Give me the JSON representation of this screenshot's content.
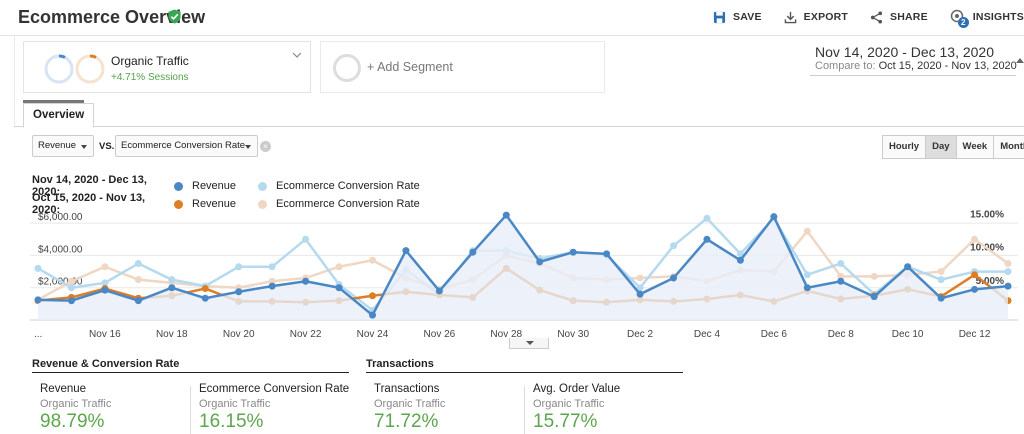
{
  "header": {
    "title": "Ecommerce Overview",
    "actions": {
      "save": "SAVE",
      "export": "EXPORT",
      "share": "SHARE",
      "insights": "INSIGHTS",
      "insights_badge": "2"
    }
  },
  "segments": {
    "active": {
      "name": "Organic Traffic",
      "sub": "+4.71% Sessions"
    },
    "add_label": "+ Add Segment"
  },
  "date_range": {
    "main": "Nov 14, 2020 - Dec 13, 2020",
    "compare_label": "Compare to:",
    "compare": "Oct 15, 2020 - Nov 13, 2020"
  },
  "tabs": {
    "overview": "Overview"
  },
  "controls": {
    "metric1": "Revenue",
    "vs": "VS.",
    "metric2": "Ecommerce Conversion Rate",
    "granularity": [
      "Hourly",
      "Day",
      "Week",
      "Month"
    ],
    "granularity_selected": "Day"
  },
  "legend": {
    "row1": {
      "range": "Nov 14, 2020 - Dec 13, 2020:",
      "s1": "Revenue",
      "s2": "Ecommerce Conversion Rate"
    },
    "row2": {
      "range": "Oct 15, 2020 - Nov 13, 2020:",
      "s1": "Revenue",
      "s2": "Ecommerce Conversion Rate"
    }
  },
  "colors": {
    "rev_current": "#4a87c5",
    "conv_current": "#b5d9ef",
    "rev_prev": "#dc7e25",
    "conv_prev": "#efd7c4",
    "green": "#5da64d"
  },
  "chart_data": {
    "type": "line",
    "x_ticks": [
      "...",
      "Nov 16",
      "Nov 18",
      "Nov 20",
      "Nov 22",
      "Nov 24",
      "Nov 26",
      "Nov 28",
      "Nov 30",
      "Dec 2",
      "Dec 4",
      "Dec 6",
      "Dec 8",
      "Dec 10",
      "Dec 12"
    ],
    "y_left_ticks": [
      "$6,000.00",
      "$4,000.00",
      "$2,000.00"
    ],
    "y_left_values": [
      6000,
      4000,
      2000
    ],
    "y_right_ticks": [
      "15.00%",
      "10.00%",
      "5.00%"
    ],
    "y_right_values": [
      15,
      10,
      5
    ],
    "ylim_left": [
      0,
      7000
    ],
    "ylim_right": [
      0,
      17
    ],
    "series": [
      {
        "name": "Revenue",
        "period": "current",
        "axis": "left",
        "values": [
          1250,
          1200,
          1850,
          1200,
          2000,
          1350,
          1750,
          2100,
          2400,
          2000,
          300,
          4300,
          1800,
          4200,
          6500,
          3600,
          4200,
          4100,
          1600,
          2600,
          5000,
          3700,
          6400,
          2000,
          2400,
          1450,
          3300,
          1350,
          1900,
          2100
        ]
      },
      {
        "name": "Ecommerce Conversion Rate",
        "period": "current",
        "axis": "left",
        "values": [
          3200,
          2000,
          2300,
          3500,
          2500,
          2100,
          3300,
          3300,
          5000,
          2200,
          600,
          3100,
          1600,
          4300,
          4300,
          3800,
          4200,
          4000,
          2000,
          4600,
          6300,
          4100,
          6300,
          2800,
          3500,
          1600,
          3300,
          2500,
          3000,
          3000
        ]
      },
      {
        "name": "Revenue",
        "period": "previous",
        "axis": "left",
        "values": [
          1200,
          1400,
          1950,
          1350,
          1500,
          1950,
          1150,
          1150,
          1100,
          1200,
          1500,
          1750,
          1550,
          1400,
          3200,
          1850,
          1200,
          1100,
          1250,
          1150,
          1300,
          1550,
          1150,
          1800,
          1300,
          1500,
          1900,
          1450,
          2800,
          1200
        ]
      },
      {
        "name": "Ecommerce Conversion Rate",
        "period": "previous",
        "axis": "left",
        "values": [
          1250,
          2400,
          3300,
          2500,
          2300,
          2100,
          2000,
          2400,
          2600,
          3300,
          3700,
          2600,
          1900,
          2500,
          4000,
          3500,
          2600,
          2500,
          2600,
          2700,
          2400,
          3100,
          3000,
          5500,
          2700,
          2700,
          2800,
          3000,
          5000,
          3500
        ]
      }
    ]
  },
  "summary": {
    "section1": "Revenue & Conversion Rate",
    "section2": "Transactions",
    "metrics": [
      {
        "name": "Revenue",
        "segment": "Organic Traffic",
        "value": "98.79%"
      },
      {
        "name": "Ecommerce Conversion Rate",
        "segment": "Organic Traffic",
        "value": "16.15%"
      },
      {
        "name": "Transactions",
        "segment": "Organic Traffic",
        "value": "71.72%"
      },
      {
        "name": "Avg. Order Value",
        "segment": "Organic Traffic",
        "value": "15.77%"
      }
    ]
  }
}
